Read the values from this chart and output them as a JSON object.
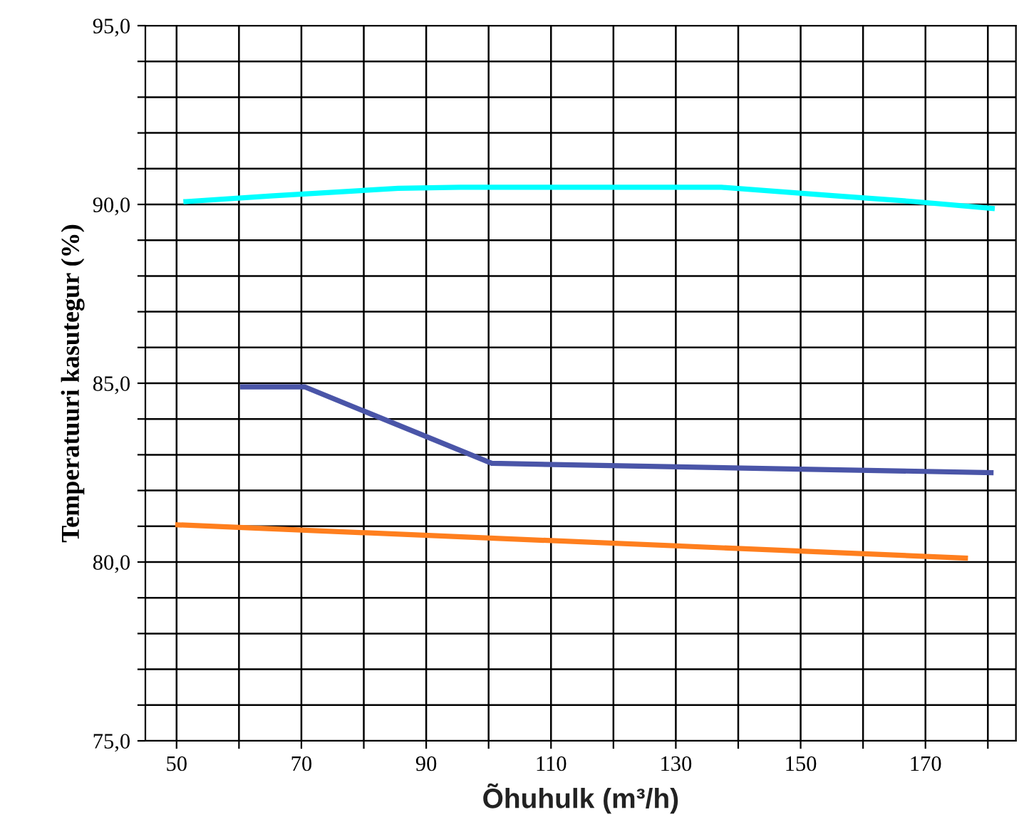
{
  "chart_data": {
    "type": "line",
    "xlabel": "Õhuhulk (m³/h)",
    "ylabel": "Temperatuuri kasutegur (%)",
    "xlim": [
      45,
      184.5
    ],
    "ylim": [
      75,
      95
    ],
    "xticks": [
      50,
      {
        "value": 60,
        "label": null
      },
      70,
      {
        "value": 80,
        "label": null
      },
      90,
      {
        "value": 100,
        "label": null
      },
      110,
      {
        "value": 120,
        "label": null
      },
      130,
      {
        "value": 140,
        "label": null
      },
      150,
      {
        "value": 160,
        "label": null
      },
      170,
      {
        "value": 180,
        "label": null
      }
    ],
    "yticks": [
      {
        "value": 75,
        "label": "75,0"
      },
      {
        "value": 76,
        "label": null
      },
      {
        "value": 77,
        "label": null
      },
      {
        "value": 78,
        "label": null
      },
      {
        "value": 79,
        "label": null
      },
      {
        "value": 80,
        "label": "80,0"
      },
      {
        "value": 81,
        "label": null
      },
      {
        "value": 82,
        "label": null
      },
      {
        "value": 83,
        "label": null
      },
      {
        "value": 84,
        "label": null
      },
      {
        "value": 85,
        "label": "85,0"
      },
      {
        "value": 86,
        "label": null
      },
      {
        "value": 87,
        "label": null
      },
      {
        "value": 88,
        "label": null
      },
      {
        "value": 89,
        "label": null
      },
      {
        "value": 90,
        "label": "90,0"
      },
      {
        "value": 91,
        "label": null
      },
      {
        "value": 92,
        "label": null
      },
      {
        "value": 93,
        "label": null
      },
      {
        "value": 94,
        "label": null
      },
      {
        "value": 95,
        "label": "95,0"
      }
    ],
    "grid": true,
    "line_style": "solid",
    "marker": "none",
    "series": [
      {
        "color": "#00ffff",
        "x": [
          51.5,
          65.5,
          85.5,
          95.5,
          137.3,
          155.5,
          168.2,
          180.7
        ],
        "values": [
          90.08,
          90.24,
          90.45,
          90.48,
          90.48,
          90.24,
          90.08,
          89.89
        ]
      },
      {
        "color": "#4a55a8",
        "x": [
          60.6,
          70.5,
          100.5,
          180.5
        ],
        "values": [
          84.9,
          84.9,
          82.76,
          82.5
        ]
      },
      {
        "color": "#ff7f1e",
        "x": [
          50.2,
          176.4
        ],
        "values": [
          81.04,
          80.11
        ]
      }
    ]
  }
}
